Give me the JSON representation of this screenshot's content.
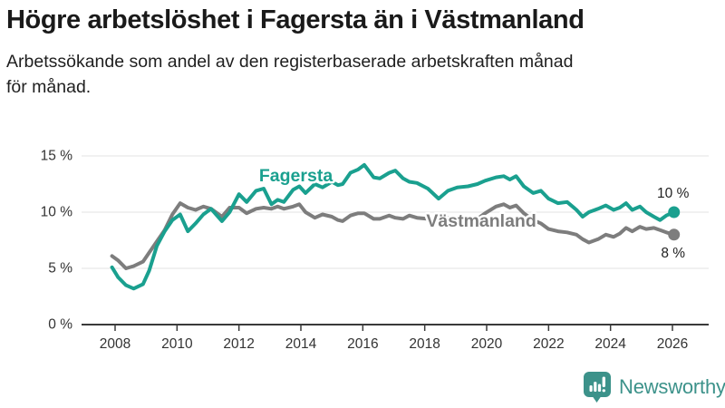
{
  "header": {
    "title": "Högre arbetslöshet i Fagersta än i Västmanland",
    "subtitle": "Arbetssökande som andel av den registerbaserade arbetskraften månad\nför månad."
  },
  "chart_data": {
    "type": "line",
    "title": "Högre arbetslöshet i Fagersta än i Västmanland",
    "xlabel": "",
    "ylabel": "%",
    "ylim": [
      0,
      15
    ],
    "yticks": [
      0,
      5,
      10,
      15
    ],
    "ytick_labels": [
      "0 %",
      "5 %",
      "10 %",
      "15 %"
    ],
    "xticks": [
      2008,
      2010,
      2012,
      2014,
      2016,
      2018,
      2020,
      2022,
      2024,
      2026
    ],
    "grid": "horizontal",
    "x": [
      2007.9,
      2008.1,
      2008.35,
      2008.6,
      2008.9,
      2009.1,
      2009.35,
      2009.6,
      2009.85,
      2010.1,
      2010.35,
      2010.6,
      2010.85,
      2011.1,
      2011.45,
      2011.7,
      2012.0,
      2012.25,
      2012.55,
      2012.8,
      2013.05,
      2013.25,
      2013.45,
      2013.75,
      2013.95,
      2014.15,
      2014.45,
      2014.7,
      2015.0,
      2015.2,
      2015.35,
      2015.6,
      2015.85,
      2016.05,
      2016.35,
      2016.55,
      2016.85,
      2017.05,
      2017.3,
      2017.5,
      2017.75,
      2018.1,
      2018.45,
      2018.75,
      2019.05,
      2019.4,
      2019.7,
      2019.95,
      2020.3,
      2020.55,
      2020.75,
      2020.95,
      2021.2,
      2021.5,
      2021.75,
      2022.0,
      2022.3,
      2022.6,
      2022.9,
      2023.1,
      2023.3,
      2023.6,
      2023.85,
      2024.1,
      2024.3,
      2024.5,
      2024.7,
      2024.95,
      2025.15,
      2025.4,
      2025.6,
      2025.8,
      2026.05
    ],
    "series": [
      {
        "name": "Fagersta",
        "color": "#1aa08f",
        "values": [
          5.1,
          4.2,
          3.5,
          3.2,
          3.6,
          4.8,
          7.0,
          8.3,
          9.3,
          9.8,
          8.3,
          9.0,
          9.8,
          10.3,
          9.2,
          10.0,
          11.6,
          10.9,
          11.9,
          12.1,
          10.7,
          11.1,
          10.9,
          12.0,
          12.3,
          11.7,
          12.5,
          12.2,
          12.7,
          12.4,
          12.5,
          13.5,
          13.8,
          14.2,
          13.1,
          13.0,
          13.5,
          13.7,
          13.0,
          12.7,
          12.6,
          12.1,
          11.2,
          11.9,
          12.2,
          12.3,
          12.5,
          12.8,
          13.1,
          13.2,
          12.9,
          13.2,
          12.3,
          11.7,
          11.9,
          11.2,
          10.8,
          10.9,
          10.2,
          9.6,
          10.0,
          10.3,
          10.6,
          10.2,
          10.4,
          10.8,
          10.2,
          10.5,
          10.0,
          9.6,
          9.3,
          9.7,
          10.0
        ],
        "end_label": "10 %",
        "end_label_position": "above",
        "label_pos": {
          "x": 2012.65,
          "y": 13.4
        }
      },
      {
        "name": "Västmanland",
        "color": "#7d7d7d",
        "values": [
          6.1,
          5.7,
          5.0,
          5.2,
          5.6,
          6.4,
          7.4,
          8.4,
          9.8,
          10.8,
          10.4,
          10.2,
          10.5,
          10.3,
          9.6,
          10.4,
          10.4,
          9.9,
          10.3,
          10.4,
          10.3,
          10.5,
          10.3,
          10.5,
          10.7,
          10.0,
          9.5,
          9.8,
          9.6,
          9.3,
          9.2,
          9.7,
          9.9,
          9.9,
          9.4,
          9.4,
          9.7,
          9.5,
          9.4,
          9.7,
          9.5,
          9.4,
          9.3,
          9.5,
          9.4,
          9.3,
          9.4,
          9.9,
          10.5,
          10.7,
          10.4,
          10.6,
          9.9,
          9.3,
          9.0,
          8.5,
          8.3,
          8.2,
          8.0,
          7.6,
          7.3,
          7.6,
          8.0,
          7.8,
          8.1,
          8.6,
          8.3,
          8.7,
          8.5,
          8.6,
          8.4,
          8.2,
          8.0
        ],
        "end_label": "8 %",
        "end_label_position": "below",
        "label_pos": {
          "x": 2018.05,
          "y": 9.35
        }
      }
    ],
    "legend_position": "inline-labels",
    "colors": {
      "grid": "#e3e3e3",
      "axis": "#3a3a3a",
      "tick_text": "#333333"
    }
  },
  "branding": {
    "name": "Newsworthy",
    "color": "#3c928a",
    "logo": "bar-chart-speech-bubble-icon"
  }
}
